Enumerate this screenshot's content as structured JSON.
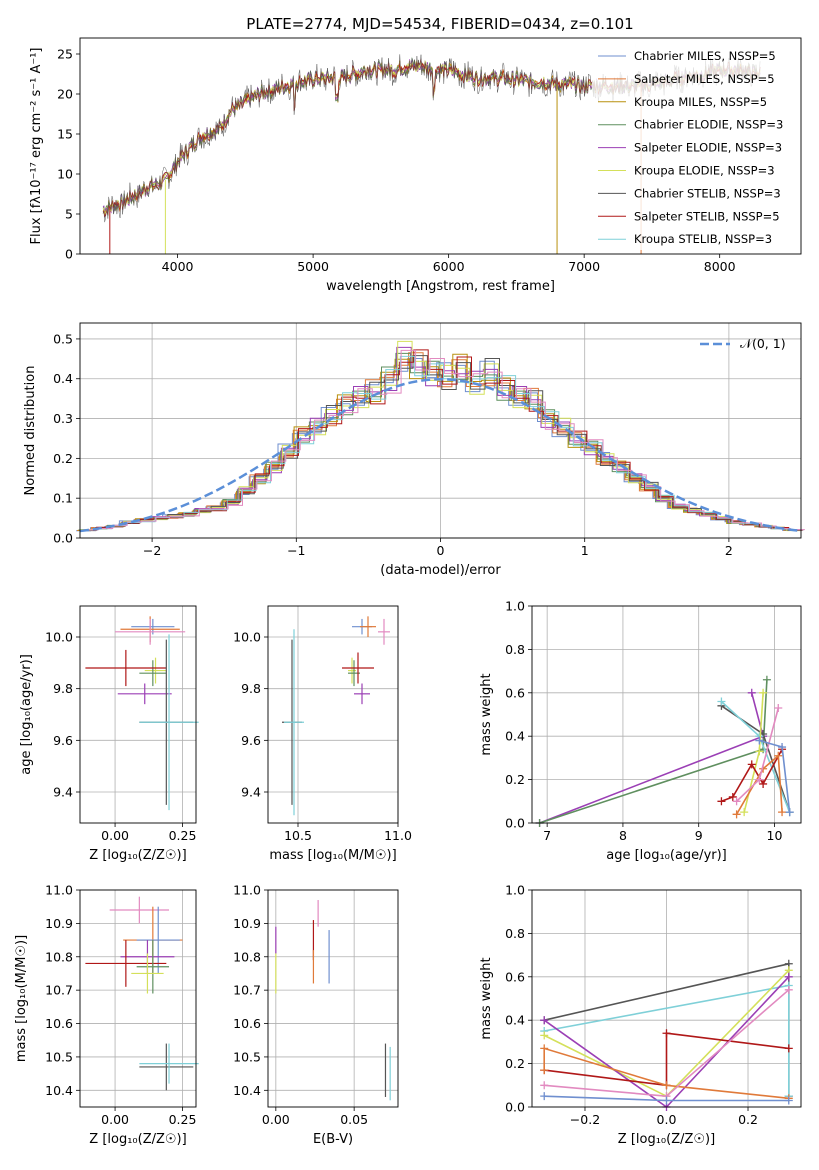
{
  "title": "PLATE=2774, MJD=54534, FIBERID=0434, z=0.101",
  "colors": {
    "chabrier_miles": "#6f8fcf",
    "salpeter_miles": "#e07a3a",
    "kroupa_miles": "#b8900e",
    "chabrier_elodie": "#5f8f5f",
    "salpeter_elodie": "#9b3fb5",
    "kroupa_elodie": "#d4e05a",
    "chabrier_stelib": "#555555",
    "salpeter_stelib": "#b01818",
    "kroupa_stelib": "#7fd0d8",
    "pink": "#e28ac0",
    "gaussian": "#5b8fd8",
    "grid": "#b0b0b0"
  },
  "chart_data": [
    {
      "type": "line",
      "panel": "spectrum",
      "xlabel": "wavelength [Angstrom, rest frame]",
      "ylabel": "Flux [fλ10⁻¹⁷ erg cm⁻² s⁻¹ A⁻¹]",
      "xlim": [
        3280,
        8600
      ],
      "ylim": [
        0,
        27
      ],
      "xticks": [
        "4000",
        "5000",
        "6000",
        "7000",
        "8000"
      ],
      "yticks": [
        "0",
        "5",
        "10",
        "15",
        "20",
        "25"
      ],
      "legend_position": "right",
      "legend": [
        "Chabrier MILES, NSSP=5",
        "Salpeter MILES, NSSP=5",
        "Kroupa MILES, NSSP=5",
        "Chabrier ELODIE, NSSP=3",
        "Salpeter ELODIE, NSSP=3",
        "Kroupa ELODIE, NSSP=3",
        "Chabrier STELIB, NSSP=3",
        "Salpeter STELIB, NSSP=5",
        "Kroupa STELIB, NSSP=3"
      ],
      "continuum": {
        "x": [
          3450,
          3600,
          3700,
          3800,
          3900,
          4000,
          4100,
          4200,
          4300,
          4400,
          4500,
          4600,
          4700,
          4800,
          4900,
          5000,
          5100,
          5200,
          5300,
          5400,
          5500,
          5600,
          5700,
          5800,
          5900,
          6000,
          6100,
          6200,
          6300,
          6400,
          6500,
          6600,
          6700,
          6800,
          6900,
          7000,
          7100,
          7200,
          7300,
          7400,
          7500,
          7600,
          7700,
          7800,
          7900,
          8000,
          8100,
          8200,
          8300
        ],
        "y": [
          5.5,
          6.5,
          7.5,
          8.5,
          9,
          11.5,
          13.5,
          15,
          15.5,
          18,
          19,
          20,
          20.5,
          21,
          21.5,
          21.8,
          22,
          22,
          22.5,
          23,
          23,
          23,
          23.5,
          23.5,
          23,
          23,
          22.5,
          22,
          22,
          22,
          21.8,
          21.5,
          21.5,
          21.2,
          21.2,
          21,
          21,
          21,
          21,
          21,
          21.2,
          21.5,
          22,
          22.2,
          22.5,
          23,
          23,
          22.8,
          22.5
        ]
      }
    },
    {
      "type": "bar",
      "panel": "residual histogram",
      "xlabel": "(data-model)/error",
      "ylabel": "Normed distribution",
      "xlim": [
        -2.5,
        2.5
      ],
      "ylim": [
        0,
        0.54
      ],
      "xticks": [
        "−2",
        "−1",
        "0",
        "1",
        "2"
      ],
      "yticks": [
        "0.0",
        "0.1",
        "0.2",
        "0.3",
        "0.4",
        "0.5"
      ],
      "legend": [
        "𝒩(0, 1)"
      ],
      "legend_position": "top-right",
      "bins": [
        -2.5,
        -2.4,
        -2.3,
        -2.2,
        -2.1,
        -2.0,
        -1.9,
        -1.8,
        -1.7,
        -1.6,
        -1.5,
        -1.4,
        -1.3,
        -1.2,
        -1.1,
        -1.0,
        -0.9,
        -0.8,
        -0.7,
        -0.6,
        -0.5,
        -0.4,
        -0.3,
        -0.2,
        -0.1,
        0.0,
        0.1,
        0.2,
        0.3,
        0.4,
        0.5,
        0.6,
        0.7,
        0.8,
        0.9,
        1.0,
        1.1,
        1.2,
        1.3,
        1.4,
        1.5,
        1.6,
        1.7,
        1.8,
        1.9,
        2.0,
        2.1,
        2.2,
        2.3,
        2.4,
        2.5
      ],
      "heights": [
        0.02,
        0.025,
        0.03,
        0.04,
        0.045,
        0.05,
        0.055,
        0.06,
        0.07,
        0.075,
        0.09,
        0.12,
        0.15,
        0.18,
        0.22,
        0.26,
        0.28,
        0.31,
        0.34,
        0.36,
        0.37,
        0.4,
        0.46,
        0.44,
        0.42,
        0.41,
        0.43,
        0.39,
        0.42,
        0.38,
        0.36,
        0.35,
        0.3,
        0.28,
        0.25,
        0.23,
        0.2,
        0.18,
        0.15,
        0.13,
        0.1,
        0.08,
        0.07,
        0.06,
        0.05,
        0.04,
        0.035,
        0.03,
        0.025,
        0.02
      ]
    },
    {
      "type": "scatter",
      "panel": "age vs Z",
      "xlabel": "Z [log₁₀(Z/Z☉)]",
      "ylabel": "age  [log₁₀(age/yr)]",
      "xlim": [
        -0.13,
        0.3
      ],
      "ylim": [
        9.28,
        10.12
      ],
      "xticks": [
        "0.00",
        "0.25"
      ],
      "yticks": [
        "9.4",
        "9.6",
        "9.8",
        "10.0"
      ],
      "points": [
        {
          "x": 0.14,
          "y": 10.04,
          "xerr": 0.08,
          "yerr": 0.03,
          "color": "chabrier_miles"
        },
        {
          "x": 0.13,
          "y": 10.03,
          "xerr": 0.11,
          "yerr": 0.05,
          "color": "salpeter_miles"
        },
        {
          "x": 0.13,
          "y": 10.02,
          "xerr": 0.13,
          "yerr": 0.05,
          "color": "pink"
        },
        {
          "x": 0.15,
          "y": 9.87,
          "xerr": 0.04,
          "yerr": 0.05,
          "color": "kroupa_elodie"
        },
        {
          "x": 0.14,
          "y": 9.86,
          "xerr": 0.05,
          "yerr": 0.05,
          "color": "chabrier_elodie"
        },
        {
          "x": 0.04,
          "y": 9.88,
          "xerr": 0.15,
          "yerr": 0.07,
          "color": "salpeter_stelib"
        },
        {
          "x": 0.11,
          "y": 9.78,
          "xerr": 0.1,
          "yerr": 0.04,
          "color": "salpeter_elodie"
        },
        {
          "x": 0.19,
          "y": 9.67,
          "xerr": 0.1,
          "yerr": 0.32,
          "color": "chabrier_stelib"
        },
        {
          "x": 0.2,
          "y": 9.67,
          "xerr": 0.11,
          "yerr": 0.34,
          "color": "kroupa_stelib"
        }
      ]
    },
    {
      "type": "scatter",
      "panel": "age vs mass",
      "xlabel": "mass [log₁₀(M/M☉)]",
      "ylabel": "",
      "xlim": [
        10.35,
        11.0
      ],
      "ylim": [
        9.28,
        10.12
      ],
      "xticks": [
        "10.5",
        "11.0"
      ],
      "yticks": [
        "9.4",
        "9.6",
        "9.8",
        "10.0"
      ],
      "points": [
        {
          "x": 10.82,
          "y": 10.04,
          "xerr": 0.05,
          "yerr": 0.03,
          "color": "chabrier_miles"
        },
        {
          "x": 10.85,
          "y": 10.04,
          "xerr": 0.04,
          "yerr": 0.04,
          "color": "salpeter_miles"
        },
        {
          "x": 10.93,
          "y": 10.02,
          "xerr": 0.03,
          "yerr": 0.05,
          "color": "pink"
        },
        {
          "x": 10.77,
          "y": 9.87,
          "xerr": 0.02,
          "yerr": 0.05,
          "color": "kroupa_elodie"
        },
        {
          "x": 10.78,
          "y": 9.86,
          "xerr": 0.03,
          "yerr": 0.05,
          "color": "chabrier_elodie"
        },
        {
          "x": 10.8,
          "y": 9.88,
          "xerr": 0.08,
          "yerr": 0.06,
          "color": "salpeter_stelib"
        },
        {
          "x": 10.82,
          "y": 9.78,
          "xerr": 0.04,
          "yerr": 0.04,
          "color": "salpeter_elodie"
        },
        {
          "x": 10.47,
          "y": 9.67,
          "xerr": 0.05,
          "yerr": 0.32,
          "color": "chabrier_stelib"
        },
        {
          "x": 10.48,
          "y": 9.67,
          "xerr": 0.05,
          "yerr": 0.36,
          "color": "kroupa_stelib"
        }
      ]
    },
    {
      "type": "line",
      "panel": "mass weight vs age",
      "xlabel": "age  [log₁₀(age/yr)]",
      "ylabel": "mass weight",
      "xlim": [
        6.8,
        10.35
      ],
      "ylim": [
        0,
        1
      ],
      "xticks": [
        "7",
        "8",
        "9",
        "10"
      ],
      "yticks": [
        "0.0",
        "0.2",
        "0.4",
        "0.6",
        "0.8",
        "1.0"
      ],
      "series": [
        {
          "color": "salpeter_elodie",
          "x": [
            6.9,
            9.85,
            9.7
          ],
          "y": [
            0.0,
            0.4,
            0.6
          ]
        },
        {
          "color": "chabrier_elodie",
          "x": [
            6.9,
            9.85,
            9.9
          ],
          "y": [
            0.0,
            0.34,
            0.66
          ]
        },
        {
          "color": "chabrier_stelib",
          "x": [
            9.3,
            9.85,
            10.2
          ],
          "y": [
            0.54,
            0.41,
            0.05
          ]
        },
        {
          "color": "kroupa_stelib",
          "x": [
            9.3,
            9.8,
            10.2
          ],
          "y": [
            0.56,
            0.4,
            0.05
          ]
        },
        {
          "color": "kroupa_elodie",
          "x": [
            9.6,
            9.8,
            9.85
          ],
          "y": [
            0.05,
            0.33,
            0.6
          ]
        },
        {
          "color": "salpeter_stelib",
          "x": [
            9.3,
            9.45,
            9.7,
            9.85,
            10.1
          ],
          "y": [
            0.1,
            0.12,
            0.27,
            0.18,
            0.34
          ]
        },
        {
          "color": "salpeter_miles",
          "x": [
            9.5,
            9.85,
            10.05,
            10.1
          ],
          "y": [
            0.04,
            0.25,
            0.31,
            0.05
          ]
        },
        {
          "color": "pink",
          "x": [
            9.5,
            9.8,
            10.05
          ],
          "y": [
            0.1,
            0.2,
            0.53
          ]
        },
        {
          "color": "chabrier_miles",
          "x": [
            9.8,
            10.1,
            10.2
          ],
          "y": [
            0.38,
            0.35,
            0.05
          ]
        }
      ]
    },
    {
      "type": "scatter",
      "panel": "mass vs Z",
      "xlabel": "Z [log₁₀(Z/Z☉)]",
      "ylabel": "mass [log₁₀(M/M☉)]",
      "xlim": [
        -0.13,
        0.3
      ],
      "ylim": [
        10.35,
        11.0
      ],
      "xticks": [
        "0.00",
        "0.25"
      ],
      "yticks": [
        "10.4",
        "10.5",
        "10.6",
        "10.7",
        "10.8",
        "10.9",
        "11.0"
      ],
      "points": [
        {
          "x": 0.09,
          "y": 10.94,
          "xerr": 0.11,
          "yerr": 0.04,
          "color": "pink"
        },
        {
          "x": 0.14,
          "y": 10.85,
          "xerr": 0.11,
          "yerr": 0.1,
          "color": "salpeter_miles"
        },
        {
          "x": 0.16,
          "y": 10.85,
          "xerr": 0.08,
          "yerr": 0.1,
          "color": "chabrier_miles"
        },
        {
          "x": 0.12,
          "y": 10.8,
          "xerr": 0.1,
          "yerr": 0.05,
          "color": "salpeter_elodie"
        },
        {
          "x": 0.04,
          "y": 10.78,
          "xerr": 0.15,
          "yerr": 0.07,
          "color": "salpeter_stelib"
        },
        {
          "x": 0.14,
          "y": 10.77,
          "xerr": 0.06,
          "yerr": 0.08,
          "color": "chabrier_elodie"
        },
        {
          "x": 0.12,
          "y": 10.75,
          "xerr": 0.06,
          "yerr": 0.06,
          "color": "kroupa_elodie"
        },
        {
          "x": 0.19,
          "y": 10.47,
          "xerr": 0.1,
          "yerr": 0.07,
          "color": "chabrier_stelib"
        },
        {
          "x": 0.2,
          "y": 10.48,
          "xerr": 0.11,
          "yerr": 0.06,
          "color": "kroupa_stelib"
        }
      ]
    },
    {
      "type": "scatter",
      "panel": "mass vs E(B-V)",
      "xlabel": "E(B-V)",
      "ylabel": "",
      "xlim": [
        -0.005,
        0.078
      ],
      "ylim": [
        10.35,
        11.0
      ],
      "xticks": [
        "0.00",
        "0.05"
      ],
      "yticks": [
        "10.4",
        "10.5",
        "10.6",
        "10.7",
        "10.8",
        "10.9",
        "11.0"
      ],
      "points": [
        {
          "x": 0.0,
          "y": 10.85,
          "xerr": 0,
          "yerr": 0.04,
          "color": "salpeter_elodie"
        },
        {
          "x": 0.0,
          "y": 10.75,
          "xerr": 0,
          "yerr": 0.06,
          "color": "kroupa_elodie"
        },
        {
          "x": 0.024,
          "y": 10.85,
          "xerr": 0,
          "yerr": 0.06,
          "color": "salpeter_stelib"
        },
        {
          "x": 0.024,
          "y": 10.77,
          "xerr": 0,
          "yerr": 0.05,
          "color": "salpeter_miles"
        },
        {
          "x": 0.027,
          "y": 10.93,
          "xerr": 0,
          "yerr": 0.04,
          "color": "pink"
        },
        {
          "x": 0.034,
          "y": 10.8,
          "xerr": 0,
          "yerr": 0.08,
          "color": "chabrier_miles"
        },
        {
          "x": 0.07,
          "y": 10.46,
          "xerr": 0,
          "yerr": 0.08,
          "color": "chabrier_stelib"
        },
        {
          "x": 0.073,
          "y": 10.45,
          "xerr": 0,
          "yerr": 0.08,
          "color": "kroupa_stelib"
        }
      ]
    },
    {
      "type": "line",
      "panel": "mass weight vs Z",
      "xlabel": "Z [log₁₀(Z/Z☉)]",
      "ylabel": "mass weight",
      "xlim": [
        -0.33,
        0.33
      ],
      "ylim": [
        0,
        1
      ],
      "xticks": [
        "−0.2",
        "0.0",
        "0.2"
      ],
      "yticks": [
        "0.0",
        "0.2",
        "0.4",
        "0.6",
        "0.8",
        "1.0"
      ],
      "series": [
        {
          "color": "chabrier_stelib",
          "x": [
            -0.3,
            0.3,
            0.3
          ],
          "y": [
            0.4,
            0.66,
            0.05
          ]
        },
        {
          "color": "kroupa_stelib",
          "x": [
            -0.3,
            0.3,
            0.3
          ],
          "y": [
            0.35,
            0.56,
            0.05
          ]
        },
        {
          "color": "kroupa_elodie",
          "x": [
            -0.3,
            0.0,
            0.3
          ],
          "y": [
            0.33,
            0.05,
            0.63
          ]
        },
        {
          "color": "salpeter_elodie",
          "x": [
            -0.3,
            0.0,
            0.3
          ],
          "y": [
            0.4,
            0.0,
            0.6
          ]
        },
        {
          "color": "salpeter_stelib",
          "x": [
            -0.3,
            0.0,
            0.0,
            0.3
          ],
          "y": [
            0.17,
            0.1,
            0.34,
            0.27
          ]
        },
        {
          "color": "salpeter_miles",
          "x": [
            -0.3,
            -0.3,
            0.0,
            0.3
          ],
          "y": [
            0.17,
            0.27,
            0.1,
            0.04
          ]
        },
        {
          "color": "pink",
          "x": [
            -0.3,
            0.0,
            0.3
          ],
          "y": [
            0.1,
            0.05,
            0.54
          ]
        },
        {
          "color": "chabrier_miles",
          "x": [
            -0.3,
            0.0,
            0.3
          ],
          "y": [
            0.05,
            0.03,
            0.03
          ]
        }
      ]
    }
  ]
}
